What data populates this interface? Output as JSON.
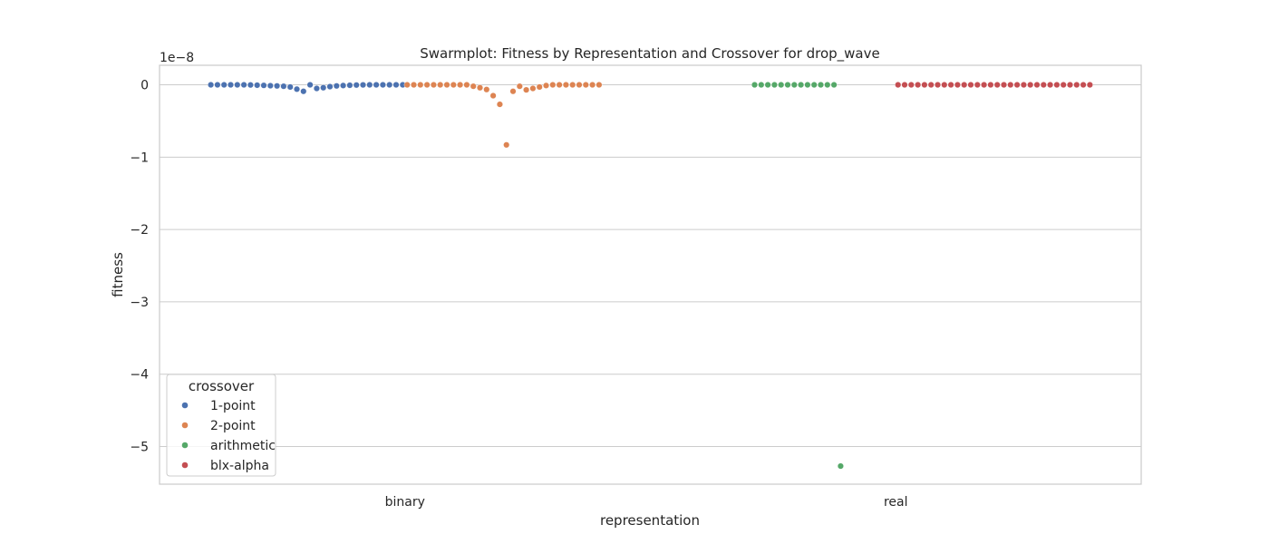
{
  "chart_data": {
    "type": "scatter",
    "subtype": "swarmplot",
    "title": "Swarmplot: Fitness by Representation and Crossover for drop_wave",
    "xlabel": "representation",
    "ylabel": "fitness",
    "y_scale_label": "1e−8",
    "categories": [
      "binary",
      "real"
    ],
    "y_ticks": [
      0,
      -1,
      -2,
      -3,
      -4,
      -5
    ],
    "y_tick_labels": [
      "0",
      "−1",
      "−2",
      "−3",
      "−4",
      "−5"
    ],
    "ylim": [
      -5.52,
      0.27
    ],
    "grid": true,
    "legend": {
      "title": "crossover",
      "placement": "lower-left"
    },
    "series": [
      {
        "name": "1-point",
        "color": "#4c72b0",
        "category": "binary",
        "values": [
          0,
          0,
          0,
          0,
          0,
          0,
          -0.002,
          -0.005,
          -0.008,
          -0.012,
          -0.015,
          -0.02,
          -0.03,
          -0.06,
          -0.09,
          0,
          -0.05,
          -0.04,
          -0.025,
          -0.015,
          -0.01,
          -0.006,
          -0.003,
          -0.001,
          0,
          0,
          0,
          0,
          0,
          0
        ]
      },
      {
        "name": "2-point",
        "color": "#dd8452",
        "category": "binary",
        "values": [
          0,
          0,
          0,
          0,
          0,
          0,
          0,
          0,
          0,
          0,
          -0.02,
          -0.04,
          -0.065,
          -0.15,
          -0.27,
          -0.83,
          -0.09,
          -0.02,
          -0.07,
          -0.05,
          -0.03,
          -0.01,
          0,
          0,
          0,
          0,
          0,
          0,
          0,
          0
        ]
      },
      {
        "name": "arithmetic",
        "color": "#55a868",
        "category": "real",
        "values": [
          0,
          0,
          0,
          0,
          0,
          0,
          0,
          0,
          0,
          0,
          0,
          0,
          0,
          -5.27
        ]
      },
      {
        "name": "blx-alpha",
        "color": "#c44e52",
        "category": "real",
        "values": [
          0,
          0,
          0,
          0,
          0,
          0,
          0,
          0,
          0,
          0,
          0,
          0,
          0,
          0,
          0,
          0,
          0,
          0,
          0,
          0,
          0,
          0,
          0,
          0,
          0,
          0,
          0,
          0,
          0,
          0
        ]
      }
    ]
  }
}
